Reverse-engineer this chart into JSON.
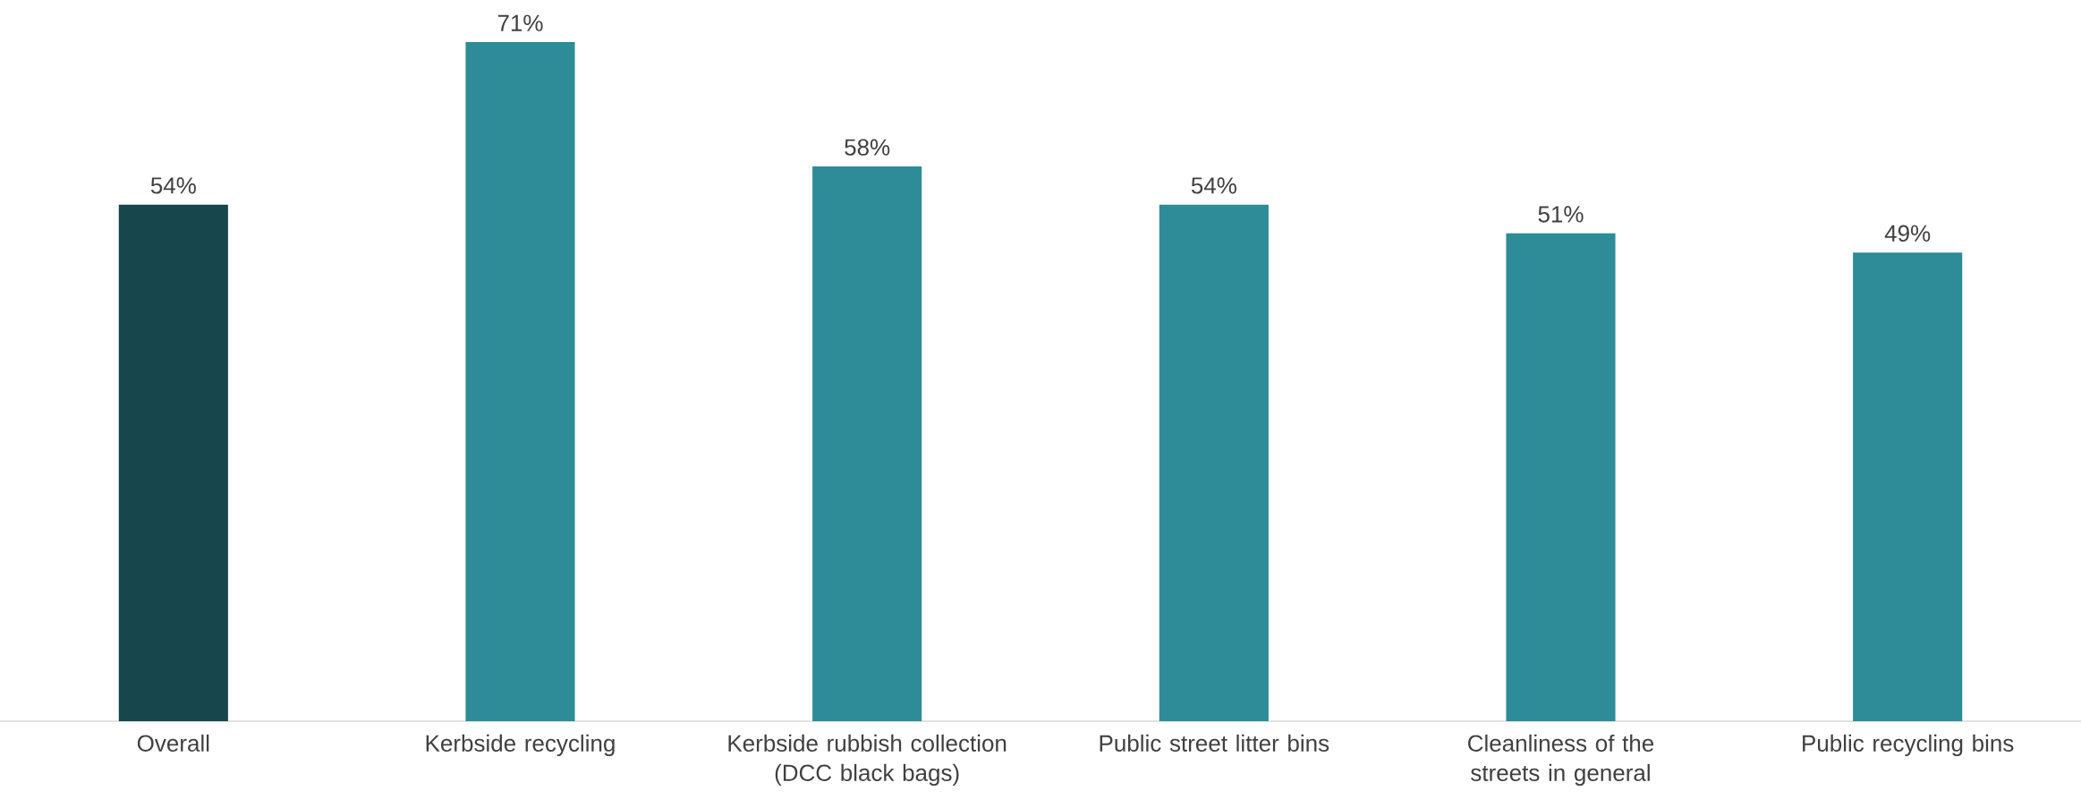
{
  "chart_data": {
    "type": "bar",
    "categories": [
      "Overall",
      "Kerbside recycling",
      "Kerbside rubbish collection (DCC black bags)",
      "Public street litter bins",
      "Cleanliness of the streets in general",
      "Public recycling bins"
    ],
    "values": [
      54,
      71,
      58,
      54,
      51,
      49
    ],
    "value_labels": [
      "54%",
      "71%",
      "58%",
      "54%",
      "51%",
      "49%"
    ],
    "colors": [
      "#17464d",
      "#2e8b98",
      "#2e8b98",
      "#2e8b98",
      "#2e8b98",
      "#2e8b98"
    ],
    "tick_labels": "x"
  }
}
